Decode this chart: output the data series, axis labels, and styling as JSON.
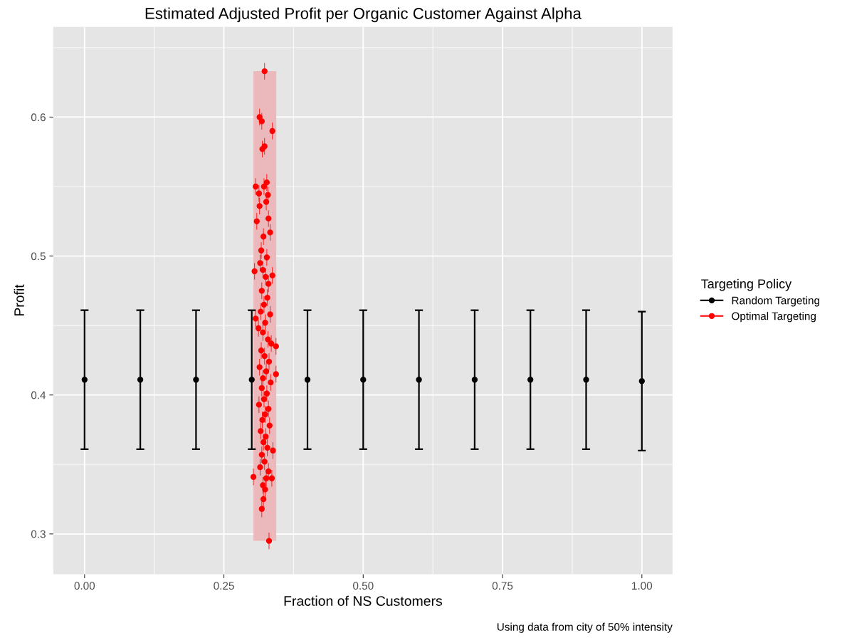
{
  "chart_data": {
    "type": "scatter",
    "title": "Estimated Adjusted Profit per Organic Customer Against Alpha",
    "xlabel": "Fraction of NS Customers",
    "ylabel": "Profit",
    "legend_title": "Targeting Policy",
    "annotations": [
      "Using data from city of 50% intensity"
    ],
    "xlim": [
      -0.056,
      1.055
    ],
    "ylim": [
      0.271,
      0.665
    ],
    "xticks": [
      {
        "value": 0,
        "label": "0.00"
      },
      {
        "value": 0.25,
        "label": "0.25"
      },
      {
        "value": 0.5,
        "label": "0.50"
      },
      {
        "value": 0.75,
        "label": "0.75"
      },
      {
        "value": 1,
        "label": "1.00"
      }
    ],
    "yticks": [
      0.3,
      0.4,
      0.5,
      0.6
    ],
    "grid": true,
    "legend": "right",
    "marker": "circle",
    "bands": [
      {
        "axis": "x",
        "from": 0.303,
        "to": 0.344,
        "color": "#ebb9bb"
      }
    ],
    "series": [
      {
        "name": "Random Targeting",
        "color": "#000000",
        "x": [
          0,
          0.1,
          0.2,
          0.3,
          0.4,
          0.5,
          0.6,
          0.7,
          0.8,
          0.9,
          1.0
        ],
        "values": [
          0.411,
          0.411,
          0.411,
          0.411,
          0.411,
          0.411,
          0.411,
          0.411,
          0.411,
          0.411,
          0.41
        ],
        "errors": [
          0.05,
          0.05,
          0.05,
          0.05,
          0.05,
          0.05,
          0.05,
          0.05,
          0.05,
          0.05,
          0.05
        ]
      },
      {
        "name": "Optimal Targeting",
        "color": "#ff0000",
        "x": [
          0.323,
          0.314,
          0.318,
          0.337,
          0.323,
          0.319,
          0.307,
          0.322,
          0.327,
          0.313,
          0.329,
          0.314,
          0.326,
          0.309,
          0.33,
          0.321,
          0.333,
          0.317,
          0.327,
          0.337,
          0.305,
          0.307,
          0.3435,
          0.3435,
          0.303,
          0.321,
          0.318,
          0.331,
          0.338,
          0.336,
          0.315,
          0.32,
          0.325,
          0.33,
          0.318,
          0.328,
          0.322,
          0.316,
          0.333,
          0.324,
          0.312,
          0.32,
          0.329,
          0.335,
          0.317,
          0.323,
          0.331,
          0.314,
          0.326,
          0.32,
          0.334,
          0.318,
          0.327,
          0.322,
          0.313,
          0.33,
          0.324,
          0.319,
          0.332,
          0.316,
          0.325,
          0.321,
          0.328,
          0.318,
          0.323,
          0.315,
          0.33,
          0.326,
          0.32,
          0.324
        ],
        "values": [
          0.633,
          0.6,
          0.597,
          0.59,
          0.579,
          0.577,
          0.55,
          0.55,
          0.553,
          0.545,
          0.544,
          0.536,
          0.539,
          0.525,
          0.527,
          0.514,
          0.517,
          0.504,
          0.499,
          0.486,
          0.489,
          0.455,
          0.435,
          0.415,
          0.341,
          0.325,
          0.318,
          0.295,
          0.36,
          0.34,
          0.495,
          0.49,
          0.485,
          0.48,
          0.475,
          0.47,
          0.465,
          0.46,
          0.458,
          0.452,
          0.448,
          0.445,
          0.44,
          0.437,
          0.432,
          0.428,
          0.424,
          0.42,
          0.417,
          0.412,
          0.409,
          0.405,
          0.401,
          0.397,
          0.393,
          0.39,
          0.386,
          0.382,
          0.378,
          0.374,
          0.37,
          0.366,
          0.362,
          0.357,
          0.352,
          0.348,
          0.345,
          0.34,
          0.335,
          0.332
        ],
        "errors": [
          0.006,
          0.006,
          0.006,
          0.006,
          0.006,
          0.006,
          0.006,
          0.006,
          0.006,
          0.006,
          0.006,
          0.006,
          0.006,
          0.006,
          0.006,
          0.006,
          0.006,
          0.006,
          0.006,
          0.006,
          0.006,
          0.006,
          0.006,
          0.006,
          0.006,
          0.006,
          0.006,
          0.006,
          0.006,
          0.006,
          0.006,
          0.006,
          0.006,
          0.006,
          0.006,
          0.006,
          0.006,
          0.006,
          0.006,
          0.006,
          0.006,
          0.006,
          0.006,
          0.006,
          0.006,
          0.006,
          0.006,
          0.006,
          0.006,
          0.006,
          0.006,
          0.006,
          0.006,
          0.006,
          0.006,
          0.006,
          0.006,
          0.006,
          0.006,
          0.006,
          0.006,
          0.006,
          0.006,
          0.006,
          0.006,
          0.006,
          0.006,
          0.006,
          0.006,
          0.006
        ]
      }
    ]
  }
}
